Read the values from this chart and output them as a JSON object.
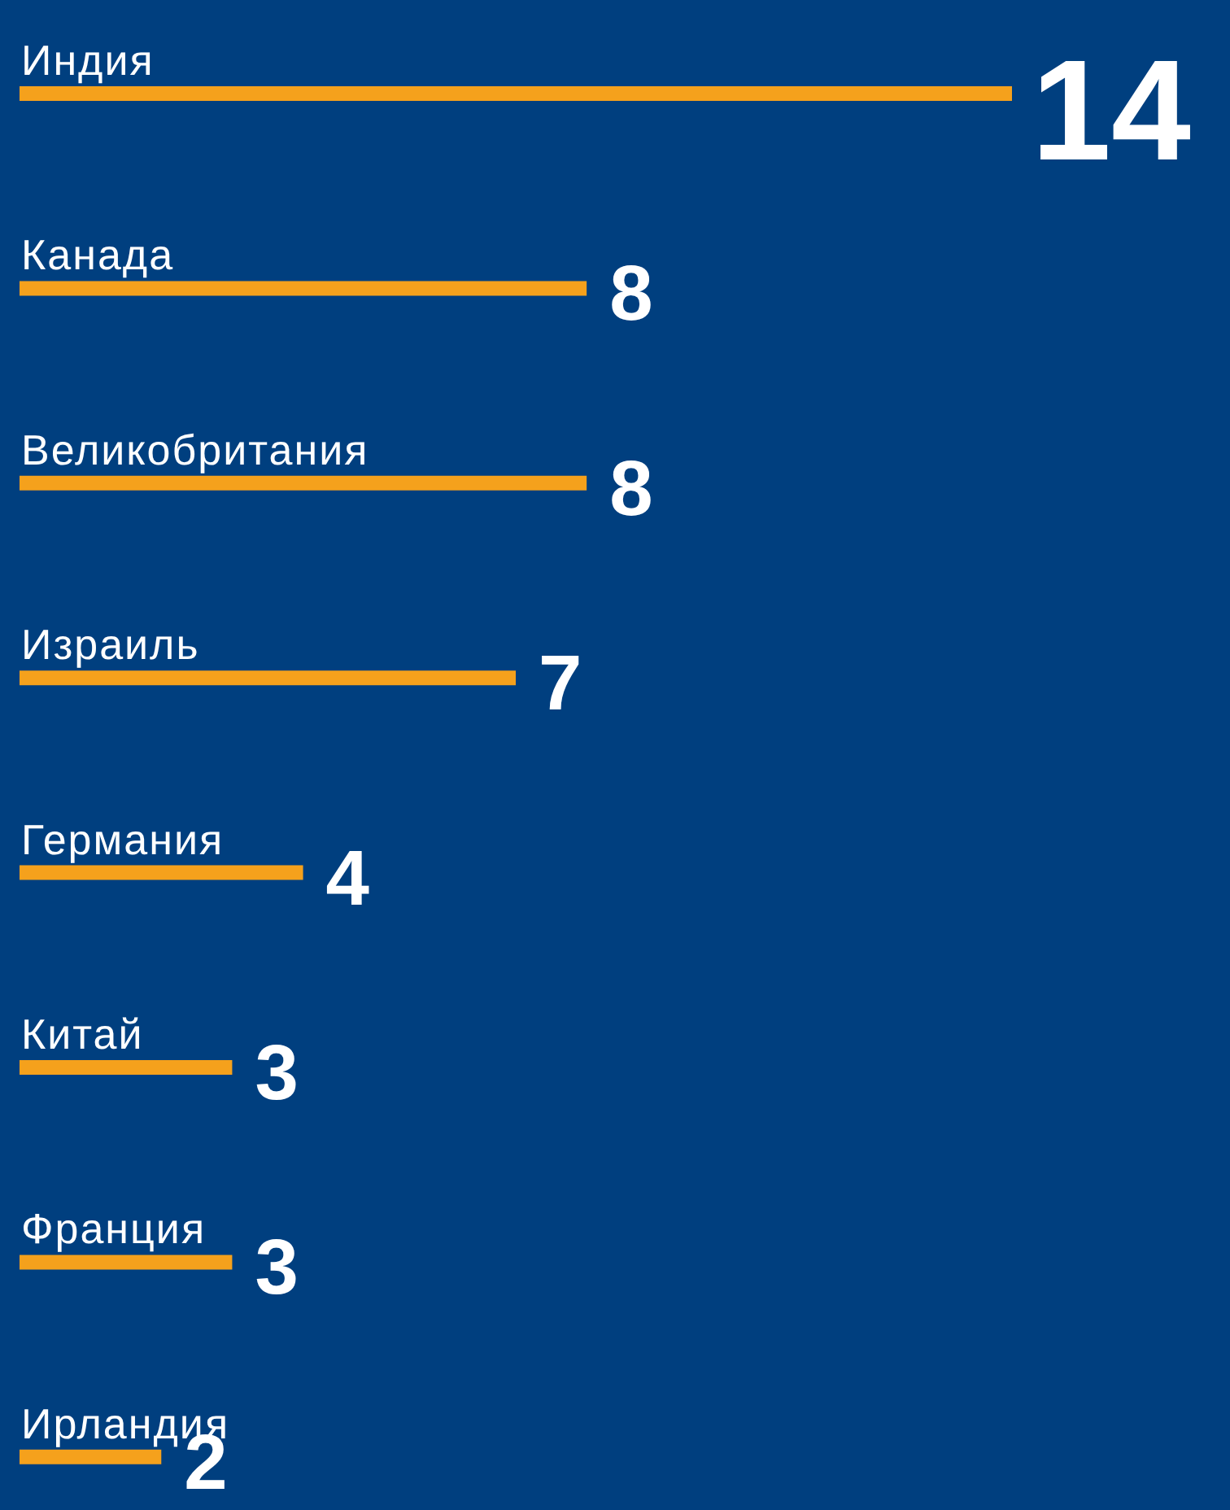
{
  "chart_data": {
    "type": "bar",
    "orientation": "horizontal",
    "categories": [
      "Индия",
      "Канада",
      "Великобритания",
      "Израиль",
      "Германия",
      "Китай",
      "Франция",
      "Ирландия"
    ],
    "values": [
      14,
      8,
      8,
      7,
      4,
      3,
      3,
      2
    ],
    "color": "#f5a11c",
    "data_labels": true
  }
}
